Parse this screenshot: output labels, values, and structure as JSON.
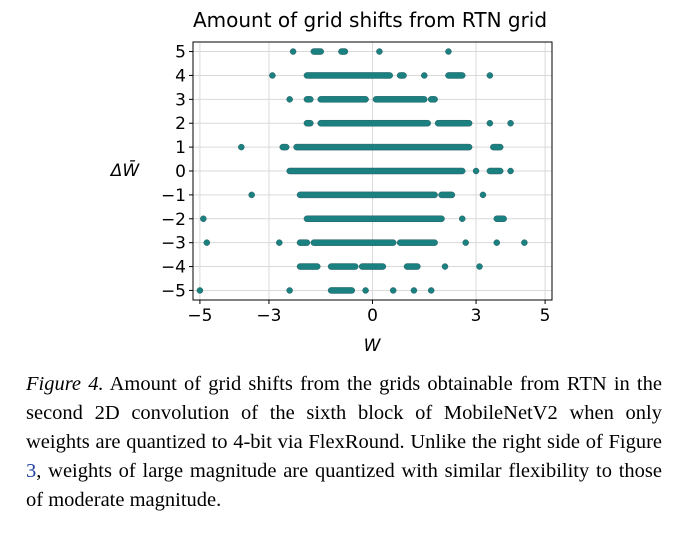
{
  "chart_data": {
    "type": "scatter",
    "title": "Amount of grid shifts from RTN grid",
    "xlabel": "W",
    "ylabel": "ΔW̄",
    "xlim": [
      -5.2,
      5.2
    ],
    "ylim": [
      -5.4,
      5.4
    ],
    "xticks": [
      -5,
      -3,
      0,
      3,
      5
    ],
    "xtick_labels": [
      "−5",
      "−3",
      "0",
      "3",
      "5"
    ],
    "yticks": [
      5,
      4,
      3,
      2,
      1,
      0,
      -1,
      -2,
      -3,
      -4,
      -5
    ],
    "ytick_labels": [
      "5",
      "4",
      "3",
      "2",
      "1",
      "0",
      "−1",
      "−2",
      "−3",
      "−4",
      "−5"
    ],
    "grid": true,
    "marker_color": "#1a8080",
    "rows": [
      {
        "y": 5,
        "segments": [
          [
            -2.3,
            -2.3
          ],
          [
            -1.7,
            -1.5
          ],
          [
            -0.9,
            -0.8
          ],
          [
            0.2,
            0.2
          ],
          [
            2.2,
            2.2
          ]
        ]
      },
      {
        "y": 4,
        "segments": [
          [
            -2.9,
            -2.9
          ],
          [
            -1.9,
            0.5
          ],
          [
            0.8,
            0.9
          ],
          [
            1.5,
            1.5
          ],
          [
            2.2,
            2.6
          ],
          [
            3.4,
            3.4
          ]
        ]
      },
      {
        "y": 3,
        "segments": [
          [
            -2.4,
            -2.4
          ],
          [
            -1.9,
            -1.8
          ],
          [
            -1.5,
            -0.2
          ],
          [
            0.1,
            1.5
          ],
          [
            1.7,
            1.8
          ]
        ]
      },
      {
        "y": 2,
        "segments": [
          [
            -1.9,
            -1.8
          ],
          [
            -1.5,
            1.6
          ],
          [
            1.9,
            2.8
          ],
          [
            3.4,
            3.4
          ],
          [
            4.0,
            4.0
          ]
        ]
      },
      {
        "y": 1,
        "segments": [
          [
            -3.8,
            -3.8
          ],
          [
            -2.6,
            -2.5
          ],
          [
            -2.2,
            2.8
          ],
          [
            3.5,
            3.7
          ]
        ]
      },
      {
        "y": 0,
        "segments": [
          [
            -2.4,
            2.6
          ],
          [
            3.0,
            3.0
          ],
          [
            3.4,
            3.7
          ],
          [
            4.0,
            4.0
          ]
        ]
      },
      {
        "y": -1,
        "segments": [
          [
            -3.5,
            -3.5
          ],
          [
            -2.1,
            1.8
          ],
          [
            2.0,
            2.3
          ],
          [
            3.2,
            3.2
          ]
        ]
      },
      {
        "y": -2,
        "segments": [
          [
            -4.9,
            -4.9
          ],
          [
            -1.9,
            2.0
          ],
          [
            2.6,
            2.6
          ],
          [
            3.6,
            3.8
          ]
        ]
      },
      {
        "y": -3,
        "segments": [
          [
            -4.8,
            -4.8
          ],
          [
            -2.7,
            -2.7
          ],
          [
            -2.1,
            -1.9
          ],
          [
            -1.7,
            0.6
          ],
          [
            0.8,
            1.8
          ],
          [
            2.7,
            2.7
          ],
          [
            3.6,
            3.6
          ],
          [
            4.4,
            4.4
          ]
        ]
      },
      {
        "y": -4,
        "segments": [
          [
            -2.1,
            -1.6
          ],
          [
            -1.2,
            -0.5
          ],
          [
            -0.3,
            0.3
          ],
          [
            1.0,
            1.3
          ],
          [
            2.1,
            2.1
          ],
          [
            3.1,
            3.1
          ]
        ]
      },
      {
        "y": -5,
        "segments": [
          [
            -5.0,
            -5.0
          ],
          [
            -2.4,
            -2.4
          ],
          [
            -1.2,
            -0.6
          ],
          [
            -0.2,
            -0.2
          ],
          [
            0.6,
            0.6
          ],
          [
            1.2,
            1.2
          ],
          [
            1.7,
            1.7
          ]
        ]
      }
    ]
  },
  "caption": {
    "label": "Figure 4.",
    "text_before_ref": " Amount of grid shifts from the grids obtainable from RTN in the second 2D convolution of the sixth block of MobileNetV2 when only weights are quantized to 4-bit via FlexRound. Unlike the right side of Figure ",
    "ref": "3",
    "text_after_ref": ", weights of large magnitude are quantized with similar flexibility to those of moderate magnitude."
  }
}
